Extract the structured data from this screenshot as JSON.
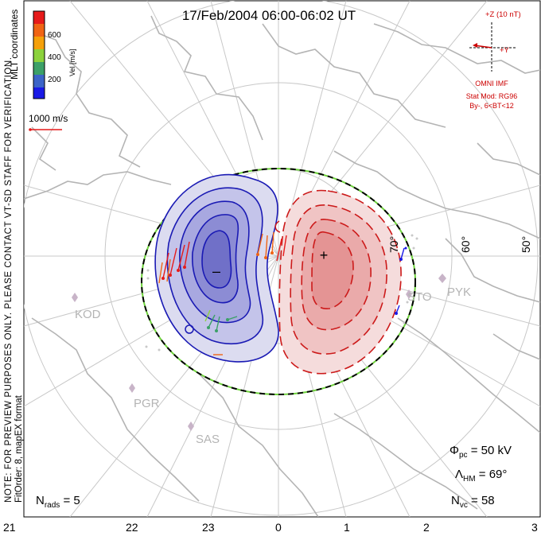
{
  "title": "17/Feb/2004 06:00-06:02 UT",
  "vertical_note": {
    "line1": "NOTE: FOR PREVIEW PURPOSES ONLY. PLEASE CONTACT VT-SD STAFF FOR VERIFICATION.",
    "line2": "FitOrder: 8, mapEX format"
  },
  "coords_label": "MLT coordinates",
  "colorbar": {
    "label": "Vel [m/s]",
    "ticks": [
      "600",
      "400",
      "200"
    ],
    "colors": [
      "#e61a1a",
      "#f06414",
      "#f5a00a",
      "#8cd23c",
      "#3ca068",
      "#3c64c8",
      "#1a1ae6"
    ]
  },
  "reference_vector_label": "1000 m/s",
  "imf": {
    "z_label": "+Z (10 nT)",
    "y_label": "+Y",
    "source": "OMNI IMF",
    "model": "Stat Mod: RG96",
    "condition": "By-, 6<BT<12",
    "color": "#cc0000"
  },
  "latitude_labels": [
    "70°",
    "60°",
    "50°"
  ],
  "station_labels": [
    "KOD",
    "PGR",
    "SAS",
    "STO",
    "PYK"
  ],
  "potential_marks": {
    "min": "–",
    "max": "+"
  },
  "stats": {
    "phi_pc": "Φpc = 50 kV",
    "phi_pc_sym": "Φ",
    "phi_pc_sub": "pc",
    "phi_pc_val": " = 50 kV",
    "lambda_sym": "Λ",
    "lambda_sub": "HM",
    "lambda_val": " = 69°",
    "nvc_sym": "N",
    "nvc_sub": "vc",
    "nvc_val": " = 58",
    "nrads_sym": "N",
    "nrads_sub": "rads",
    "nrads_val": " = 5"
  },
  "mlt_axis": [
    "21",
    "22",
    "23",
    "0",
    "1",
    "2",
    "3"
  ],
  "colors": {
    "negative_cell": "#1a1ab4",
    "positive_cell": "#cc1a1a",
    "map": "#b4b4b4",
    "boundary_dash": "#6ed23c"
  }
}
